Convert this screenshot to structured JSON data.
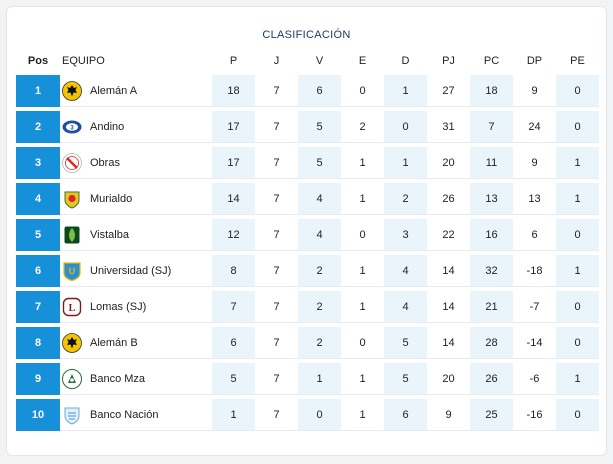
{
  "title": "CLASIFICACIÓN",
  "columns": {
    "pos": "Pos",
    "team": "EQUIPO",
    "p": "P",
    "j": "J",
    "v": "V",
    "e": "E",
    "d": "D",
    "pj": "PJ",
    "pc": "PC",
    "dp": "DP",
    "pe": "PE"
  },
  "rows": [
    {
      "pos": "1",
      "team": "Alemán A",
      "crest_icon": "eagle-crest-icon",
      "p": "18",
      "j": "7",
      "v": "6",
      "e": "0",
      "d": "1",
      "pj": "27",
      "pc": "18",
      "dp": "9",
      "pe": "0"
    },
    {
      "pos": "2",
      "team": "Andino",
      "crest_icon": "andino-crest-icon",
      "p": "17",
      "j": "7",
      "v": "5",
      "e": "2",
      "d": "0",
      "pj": "31",
      "pc": "7",
      "dp": "24",
      "pe": "0"
    },
    {
      "pos": "3",
      "team": "Obras",
      "crest_icon": "obras-crest-icon",
      "p": "17",
      "j": "7",
      "v": "5",
      "e": "1",
      "d": "1",
      "pj": "20",
      "pc": "11",
      "dp": "9",
      "pe": "1"
    },
    {
      "pos": "4",
      "team": "Murialdo",
      "crest_icon": "murialdo-crest-icon",
      "p": "14",
      "j": "7",
      "v": "4",
      "e": "1",
      "d": "2",
      "pj": "26",
      "pc": "13",
      "dp": "13",
      "pe": "1"
    },
    {
      "pos": "5",
      "team": "Vistalba",
      "crest_icon": "vistalba-crest-icon",
      "p": "12",
      "j": "7",
      "v": "4",
      "e": "0",
      "d": "3",
      "pj": "22",
      "pc": "16",
      "dp": "6",
      "pe": "0"
    },
    {
      "pos": "6",
      "team": "Universidad (SJ)",
      "crest_icon": "universidad-crest-icon",
      "p": "8",
      "j": "7",
      "v": "2",
      "e": "1",
      "d": "4",
      "pj": "14",
      "pc": "32",
      "dp": "-18",
      "pe": "1"
    },
    {
      "pos": "7",
      "team": "Lomas (SJ)",
      "crest_icon": "lomas-crest-icon",
      "p": "7",
      "j": "7",
      "v": "2",
      "e": "1",
      "d": "4",
      "pj": "14",
      "pc": "21",
      "dp": "-7",
      "pe": "0"
    },
    {
      "pos": "8",
      "team": "Alemán B",
      "crest_icon": "eagle-crest-icon",
      "p": "6",
      "j": "7",
      "v": "2",
      "e": "0",
      "d": "5",
      "pj": "14",
      "pc": "28",
      "dp": "-14",
      "pe": "0"
    },
    {
      "pos": "9",
      "team": "Banco Mza",
      "crest_icon": "banco-mza-crest-icon",
      "p": "5",
      "j": "7",
      "v": "1",
      "e": "1",
      "d": "5",
      "pj": "20",
      "pc": "26",
      "dp": "-6",
      "pe": "1"
    },
    {
      "pos": "10",
      "team": "Banco Nación",
      "crest_icon": "banco-nacion-crest-icon",
      "p": "1",
      "j": "7",
      "v": "0",
      "e": "1",
      "d": "6",
      "pj": "9",
      "pc": "25",
      "dp": "-16",
      "pe": "0"
    }
  ],
  "colors": {
    "pos_bg": "#1690d8",
    "shade_bg": "#eaf4fb",
    "title": "#1a3a6b"
  }
}
